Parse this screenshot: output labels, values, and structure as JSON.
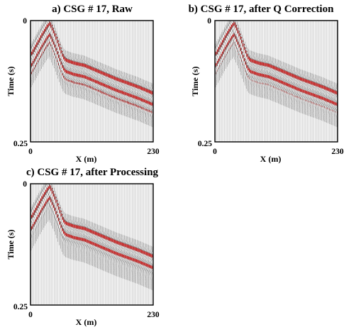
{
  "chart_data": [
    {
      "type": "seismic_gather",
      "title": "a) CSG # 17, Raw",
      "xlabel": "X (m)",
      "ylabel": "Time (s)",
      "xlim": [
        0,
        230
      ],
      "ylim": [
        0.25,
        0
      ],
      "x_tick_labels": [
        "0",
        "230"
      ],
      "y_tick_labels": [
        "0",
        "0.25"
      ],
      "grid": false,
      "series": [
        {
          "x": [
            0,
            10,
            20,
            30,
            35,
            45,
            55,
            60,
            65,
            80,
            100,
            130,
            160,
            200,
            230
          ],
          "y": [
            0.07,
            0.05,
            0.03,
            0.012,
            0.005,
            0.03,
            0.06,
            0.074,
            0.081,
            0.087,
            0.092,
            0.106,
            0.12,
            0.136,
            0.15
          ]
        }
      ],
      "wavelet_color": "#c81e1e"
    },
    {
      "type": "seismic_gather",
      "title": "b) CSG # 17, after Q Correction",
      "xlabel": "X (m)",
      "ylabel": "Time (s)",
      "xlim": [
        0,
        230
      ],
      "ylim": [
        0.25,
        0
      ],
      "x_tick_labels": [
        "0",
        "230"
      ],
      "y_tick_labels": [
        "0",
        "0.25"
      ],
      "grid": false,
      "series": [
        {
          "x": [
            0,
            10,
            20,
            30,
            35,
            45,
            55,
            60,
            65,
            80,
            100,
            130,
            160,
            200,
            230
          ],
          "y": [
            0.07,
            0.05,
            0.03,
            0.012,
            0.005,
            0.03,
            0.06,
            0.074,
            0.081,
            0.087,
            0.092,
            0.106,
            0.12,
            0.136,
            0.15
          ]
        }
      ],
      "wavelet_color": "#c81e1e"
    },
    {
      "type": "seismic_gather",
      "title": "c) CSG # 17, after Processing",
      "xlabel": "X (m)",
      "ylabel": "Time (s)",
      "xlim": [
        0,
        230
      ],
      "ylim": [
        0.25,
        0
      ],
      "x_tick_labels": [
        "0",
        "230"
      ],
      "y_tick_labels": [
        "0",
        "0.25"
      ],
      "grid": false,
      "series": [
        {
          "x": [
            0,
            10,
            20,
            30,
            35,
            45,
            55,
            60,
            65,
            80,
            100,
            130,
            160,
            200,
            230
          ],
          "y": [
            0.07,
            0.05,
            0.03,
            0.012,
            0.005,
            0.03,
            0.06,
            0.074,
            0.081,
            0.087,
            0.092,
            0.106,
            0.12,
            0.136,
            0.15
          ]
        }
      ],
      "wavelet_color": "#c81e1e"
    }
  ]
}
